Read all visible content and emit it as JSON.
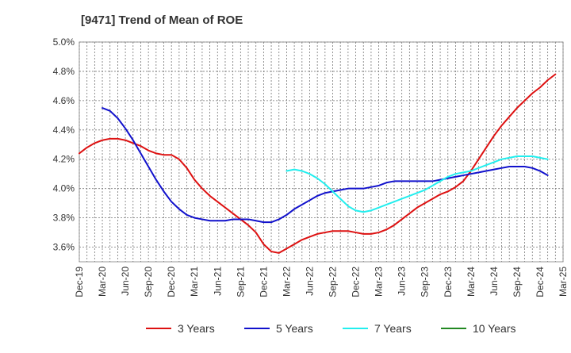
{
  "chart_data": {
    "type": "line",
    "title": "[9471]  Trend of Mean of ROE",
    "xlabel": "",
    "ylabel": "",
    "x_start": "Dec-19",
    "x_end": "Mar-25",
    "ylim": [
      3.5,
      5.0
    ],
    "yticks": [
      "3.6%",
      "3.8%",
      "4.0%",
      "4.2%",
      "4.4%",
      "4.6%",
      "4.8%",
      "5.0%"
    ],
    "ytick_values": [
      3.6,
      3.8,
      4.0,
      4.2,
      4.4,
      4.6,
      4.8,
      5.0
    ],
    "xticks": [
      "Dec-19",
      "Mar-20",
      "Jun-20",
      "Sep-20",
      "Dec-20",
      "Mar-21",
      "Jun-21",
      "Sep-21",
      "Dec-21",
      "Mar-22",
      "Jun-22",
      "Sep-22",
      "Dec-22",
      "Mar-23",
      "Jun-23",
      "Sep-23",
      "Dec-23",
      "Mar-24",
      "Jun-24",
      "Sep-24",
      "Dec-24",
      "Mar-25"
    ],
    "grid": true,
    "legend_position": "bottom",
    "series": [
      {
        "name": "3 Years",
        "color": "#dd1111",
        "points": [
          [
            "Dec-19",
            4.24
          ],
          [
            "Jan-20",
            4.28
          ],
          [
            "Feb-20",
            4.31
          ],
          [
            "Mar-20",
            4.33
          ],
          [
            "Apr-20",
            4.34
          ],
          [
            "May-20",
            4.34
          ],
          [
            "Jun-20",
            4.33
          ],
          [
            "Jul-20",
            4.31
          ],
          [
            "Aug-20",
            4.29
          ],
          [
            "Sep-20",
            4.26
          ],
          [
            "Oct-20",
            4.24
          ],
          [
            "Nov-20",
            4.23
          ],
          [
            "Dec-20",
            4.23
          ],
          [
            "Jan-21",
            4.2
          ],
          [
            "Feb-21",
            4.14
          ],
          [
            "Mar-21",
            4.06
          ],
          [
            "Apr-21",
            4.0
          ],
          [
            "May-21",
            3.95
          ],
          [
            "Jun-21",
            3.91
          ],
          [
            "Jul-21",
            3.87
          ],
          [
            "Aug-21",
            3.83
          ],
          [
            "Sep-21",
            3.79
          ],
          [
            "Oct-21",
            3.75
          ],
          [
            "Nov-21",
            3.7
          ],
          [
            "Dec-21",
            3.62
          ],
          [
            "Jan-22",
            3.57
          ],
          [
            "Feb-22",
            3.56
          ],
          [
            "Mar-22",
            3.59
          ],
          [
            "Apr-22",
            3.62
          ],
          [
            "May-22",
            3.65
          ],
          [
            "Jun-22",
            3.67
          ],
          [
            "Jul-22",
            3.69
          ],
          [
            "Aug-22",
            3.7
          ],
          [
            "Sep-22",
            3.71
          ],
          [
            "Oct-22",
            3.71
          ],
          [
            "Nov-22",
            3.71
          ],
          [
            "Dec-22",
            3.7
          ],
          [
            "Jan-23",
            3.69
          ],
          [
            "Feb-23",
            3.69
          ],
          [
            "Mar-23",
            3.7
          ],
          [
            "Apr-23",
            3.72
          ],
          [
            "May-23",
            3.75
          ],
          [
            "Jun-23",
            3.79
          ],
          [
            "Jul-23",
            3.83
          ],
          [
            "Aug-23",
            3.87
          ],
          [
            "Sep-23",
            3.9
          ],
          [
            "Oct-23",
            3.93
          ],
          [
            "Nov-23",
            3.96
          ],
          [
            "Dec-23",
            3.98
          ],
          [
            "Jan-24",
            4.01
          ],
          [
            "Feb-24",
            4.05
          ],
          [
            "Mar-24",
            4.12
          ],
          [
            "Apr-24",
            4.2
          ],
          [
            "May-24",
            4.28
          ],
          [
            "Jun-24",
            4.36
          ],
          [
            "Jul-24",
            4.43
          ],
          [
            "Aug-24",
            4.49
          ],
          [
            "Sep-24",
            4.55
          ],
          [
            "Oct-24",
            4.6
          ],
          [
            "Nov-24",
            4.65
          ],
          [
            "Dec-24",
            4.69
          ],
          [
            "Jan-25",
            4.74
          ],
          [
            "Feb-25",
            4.78
          ]
        ]
      },
      {
        "name": "5 Years",
        "color": "#1111cc",
        "points": [
          [
            "Mar-20",
            4.55
          ],
          [
            "Apr-20",
            4.53
          ],
          [
            "May-20",
            4.48
          ],
          [
            "Jun-20",
            4.41
          ],
          [
            "Jul-20",
            4.33
          ],
          [
            "Aug-20",
            4.24
          ],
          [
            "Sep-20",
            4.15
          ],
          [
            "Oct-20",
            4.06
          ],
          [
            "Nov-20",
            3.98
          ],
          [
            "Dec-20",
            3.91
          ],
          [
            "Jan-21",
            3.86
          ],
          [
            "Feb-21",
            3.82
          ],
          [
            "Mar-21",
            3.8
          ],
          [
            "Apr-21",
            3.79
          ],
          [
            "May-21",
            3.78
          ],
          [
            "Jun-21",
            3.78
          ],
          [
            "Jul-21",
            3.78
          ],
          [
            "Aug-21",
            3.79
          ],
          [
            "Sep-21",
            3.79
          ],
          [
            "Oct-21",
            3.79
          ],
          [
            "Nov-21",
            3.78
          ],
          [
            "Dec-21",
            3.77
          ],
          [
            "Jan-22",
            3.77
          ],
          [
            "Feb-22",
            3.79
          ],
          [
            "Mar-22",
            3.82
          ],
          [
            "Apr-22",
            3.86
          ],
          [
            "May-22",
            3.89
          ],
          [
            "Jun-22",
            3.92
          ],
          [
            "Jul-22",
            3.95
          ],
          [
            "Aug-22",
            3.97
          ],
          [
            "Sep-22",
            3.98
          ],
          [
            "Oct-22",
            3.99
          ],
          [
            "Nov-22",
            4.0
          ],
          [
            "Dec-22",
            4.0
          ],
          [
            "Jan-23",
            4.0
          ],
          [
            "Feb-23",
            4.01
          ],
          [
            "Mar-23",
            4.02
          ],
          [
            "Apr-23",
            4.04
          ],
          [
            "May-23",
            4.05
          ],
          [
            "Jun-23",
            4.05
          ],
          [
            "Jul-23",
            4.05
          ],
          [
            "Aug-23",
            4.05
          ],
          [
            "Sep-23",
            4.05
          ],
          [
            "Oct-23",
            4.05
          ],
          [
            "Nov-23",
            4.06
          ],
          [
            "Dec-23",
            4.07
          ],
          [
            "Jan-24",
            4.08
          ],
          [
            "Feb-24",
            4.09
          ],
          [
            "Mar-24",
            4.1
          ],
          [
            "Apr-24",
            4.11
          ],
          [
            "May-24",
            4.12
          ],
          [
            "Jun-24",
            4.13
          ],
          [
            "Jul-24",
            4.14
          ],
          [
            "Aug-24",
            4.15
          ],
          [
            "Sep-24",
            4.15
          ],
          [
            "Oct-24",
            4.15
          ],
          [
            "Nov-24",
            4.14
          ],
          [
            "Dec-24",
            4.12
          ],
          [
            "Jan-25",
            4.09
          ]
        ]
      },
      {
        "name": "7 Years",
        "color": "#22eeee",
        "points": [
          [
            "Mar-22",
            4.12
          ],
          [
            "Apr-22",
            4.13
          ],
          [
            "May-22",
            4.12
          ],
          [
            "Jun-22",
            4.1
          ],
          [
            "Jul-22",
            4.07
          ],
          [
            "Aug-22",
            4.03
          ],
          [
            "Sep-22",
            3.98
          ],
          [
            "Oct-22",
            3.93
          ],
          [
            "Nov-22",
            3.88
          ],
          [
            "Dec-22",
            3.85
          ],
          [
            "Jan-23",
            3.84
          ],
          [
            "Feb-23",
            3.85
          ],
          [
            "Mar-23",
            3.87
          ],
          [
            "Apr-23",
            3.89
          ],
          [
            "May-23",
            3.91
          ],
          [
            "Jun-23",
            3.93
          ],
          [
            "Jul-23",
            3.95
          ],
          [
            "Aug-23",
            3.97
          ],
          [
            "Sep-23",
            3.99
          ],
          [
            "Oct-23",
            4.02
          ],
          [
            "Nov-23",
            4.05
          ],
          [
            "Dec-23",
            4.08
          ],
          [
            "Jan-24",
            4.1
          ],
          [
            "Feb-24",
            4.11
          ],
          [
            "Mar-24",
            4.12
          ],
          [
            "Apr-24",
            4.14
          ],
          [
            "May-24",
            4.16
          ],
          [
            "Jun-24",
            4.18
          ],
          [
            "Jul-24",
            4.2
          ],
          [
            "Aug-24",
            4.21
          ],
          [
            "Sep-24",
            4.22
          ],
          [
            "Oct-24",
            4.22
          ],
          [
            "Nov-24",
            4.22
          ],
          [
            "Dec-24",
            4.21
          ],
          [
            "Jan-25",
            4.2
          ]
        ]
      },
      {
        "name": "10 Years",
        "color": "#228822",
        "points": []
      }
    ]
  }
}
